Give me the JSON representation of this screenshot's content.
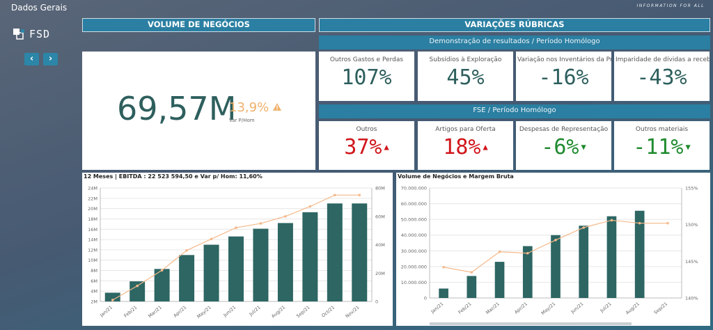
{
  "app": {
    "title": "Dados Gerais",
    "tagline": "INFORMATION FOR ALL",
    "logo_text": "FSD",
    "nav_prev": "‹",
    "nav_next": "›"
  },
  "volume_panel": {
    "header": "VOLUME DE NEGÓCIOS",
    "value": "69,57M",
    "variation": "13,9%",
    "variation_label": "Var P/Hom",
    "variation_icon": "warning-triangle-icon",
    "variation_color": "#f0b06a"
  },
  "variacoes_panel": {
    "header": "VARIAÇÕES RÚBRICAS",
    "group1": {
      "title": "Demonstração de resultados / Período Homólogo",
      "items": [
        {
          "label": "Outros Gastos e Perdas",
          "value": "107%"
        },
        {
          "label": "Subsídios à Exploração",
          "value": "45%"
        },
        {
          "label": "Variação nos Inventários da Pr...",
          "value": "-16%"
        },
        {
          "label": "Imparidade de dívidas a receb...",
          "value": "-43%"
        }
      ]
    },
    "group2": {
      "title": "FSE / Período Homólogo",
      "items": [
        {
          "label": "Outros",
          "value": "37%",
          "trend": "up"
        },
        {
          "label": "Artigos para Oferta",
          "value": "18%",
          "trend": "up"
        },
        {
          "label": "Despesas de Representação",
          "value": "-6%",
          "trend": "down"
        },
        {
          "label": "Outros materiais",
          "value": "-11%",
          "trend": "down"
        }
      ]
    }
  },
  "colors": {
    "bar": "#2d6663",
    "line": "#f5b98a",
    "kpi_neutral": "#2d5f5d",
    "up": "#d0161b",
    "down": "#1e8a2e"
  },
  "chart_data": [
    {
      "type": "bar",
      "title": "12 Meses | EBITDA : 22 523 594,50 e Var p/ Hom: 11,60%",
      "categories": [
        "Jan/21",
        "Feb/21",
        "Mar/21",
        "Apr/21",
        "May/21",
        "Jun/21",
        "Jul/21",
        "Aug/21",
        "Sep/21",
        "Oct/21",
        "Nov/21"
      ],
      "series": [
        {
          "type": "bar",
          "axis": "left",
          "values": [
            3.7,
            5.9,
            8.3,
            11.0,
            13.0,
            14.6,
            16.1,
            17.2,
            19.3,
            21.0,
            21.0
          ]
        },
        {
          "type": "line",
          "axis": "right",
          "values": [
            1,
            11,
            22,
            36,
            44,
            52,
            55,
            60,
            67,
            75,
            75
          ]
        }
      ],
      "yticks_left": [
        "2M",
        "4M",
        "6M",
        "8M",
        "10M",
        "12M",
        "14M",
        "16M",
        "18M",
        "20M",
        "22M",
        "24M"
      ],
      "yticks_right": [
        "0",
        "20M",
        "40M",
        "60M",
        "80M"
      ],
      "ylim_left": [
        2,
        24
      ],
      "ylim_right": [
        0,
        80
      ]
    },
    {
      "type": "bar",
      "title": "Volume de Negócios e Margem Bruta",
      "categories": [
        "Jan/21",
        "Feb/21",
        "Mar/21",
        "Apr/21",
        "May/21",
        "Jun/21",
        "Jul/21",
        "Aug/21",
        "Sep/21"
      ],
      "series": [
        {
          "type": "bar",
          "axis": "left",
          "values": [
            6000000,
            14000000,
            23000000,
            33000000,
            40000000,
            46000000,
            52000000,
            55500000,
            0
          ]
        },
        {
          "type": "line",
          "axis": "right",
          "values": [
            144.2,
            143.5,
            146.3,
            146.1,
            147.9,
            149.6,
            150.6,
            150.2,
            150.2
          ]
        }
      ],
      "yticks_left": [
        "0",
        "10.000.000",
        "20.000.000",
        "30.000.000",
        "40.000.000",
        "50.000.000",
        "60.000.000",
        "70.000.000"
      ],
      "yticks_right": [
        "140%",
        "145%",
        "150%",
        "155%"
      ],
      "ylim_left": [
        0,
        70000000
      ],
      "ylim_right": [
        140,
        155
      ]
    }
  ]
}
